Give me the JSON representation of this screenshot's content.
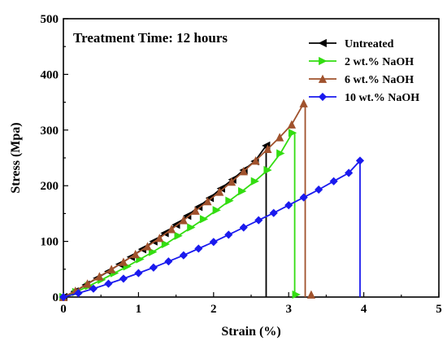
{
  "chart_data": {
    "type": "line",
    "annotation": "Treatment Time: 12 hours",
    "xlabel": "Strain (%)",
    "ylabel": "Stress (Mpa)",
    "xlim": [
      0,
      5
    ],
    "ylim": [
      0,
      500
    ],
    "xticks": [
      "0",
      "1",
      "2",
      "3",
      "4",
      "5"
    ],
    "yticks": [
      "0",
      "100",
      "200",
      "300",
      "400",
      "500"
    ],
    "grid": false,
    "legend_position": "top-right",
    "series": [
      {
        "name": "Untreated",
        "color": "#000000",
        "marker": "triangle-left",
        "x": [
          0,
          0.15,
          0.3,
          0.45,
          0.6,
          0.75,
          0.9,
          1.05,
          1.2,
          1.35,
          1.5,
          1.65,
          1.8,
          1.95,
          2.1,
          2.25,
          2.4,
          2.55,
          2.7
        ],
        "y": [
          0,
          10,
          22,
          34,
          46,
          59,
          72,
          86,
          100,
          115,
          130,
          146,
          162,
          178,
          195,
          211,
          228,
          244,
          272
        ],
        "break": {
          "x": 2.7,
          "y_top": 272
        }
      },
      {
        "name": "2 wt.% NaOH",
        "color": "#33dd11",
        "marker": "triangle-right",
        "x": [
          0,
          0.17,
          0.34,
          0.51,
          0.68,
          0.85,
          1.02,
          1.19,
          1.36,
          1.53,
          1.7,
          1.87,
          2.04,
          2.21,
          2.38,
          2.55,
          2.72,
          2.89,
          3.05
        ],
        "y": [
          0,
          9,
          20,
          31,
          43,
          55,
          68,
          81,
          95,
          110,
          125,
          140,
          156,
          173,
          190,
          208,
          228,
          258,
          295
        ],
        "break": {
          "x": 3.08,
          "y_top": 295,
          "end_marker_x": 3.1
        }
      },
      {
        "name": "6 wt.% NaOH",
        "color": "#a0522d",
        "marker": "triangle-up",
        "x": [
          0,
          0.16,
          0.32,
          0.48,
          0.64,
          0.8,
          0.96,
          1.12,
          1.28,
          1.44,
          1.6,
          1.76,
          1.92,
          2.08,
          2.24,
          2.4,
          2.56,
          2.72,
          2.88,
          3.04,
          3.2
        ],
        "y": [
          0,
          11,
          24,
          37,
          50,
          63,
          77,
          91,
          106,
          122,
          138,
          155,
          172,
          189,
          207,
          226,
          245,
          266,
          287,
          310,
          348
        ],
        "break": {
          "x": 3.22,
          "y_top": 348,
          "end_marker_x": 3.3
        }
      },
      {
        "name": "10 wt.% NaOH",
        "color": "#1a1aee",
        "marker": "diamond",
        "x": [
          0,
          0.2,
          0.4,
          0.6,
          0.8,
          1.0,
          1.2,
          1.4,
          1.6,
          1.8,
          2.0,
          2.2,
          2.4,
          2.6,
          2.8,
          3.0,
          3.2,
          3.4,
          3.6,
          3.8,
          3.95
        ],
        "y": [
          0,
          7,
          15,
          24,
          33,
          43,
          53,
          64,
          75,
          87,
          99,
          112,
          125,
          138,
          151,
          165,
          179,
          193,
          208,
          223,
          245
        ],
        "break": {
          "x": 3.95,
          "y_top": 245
        }
      }
    ]
  }
}
